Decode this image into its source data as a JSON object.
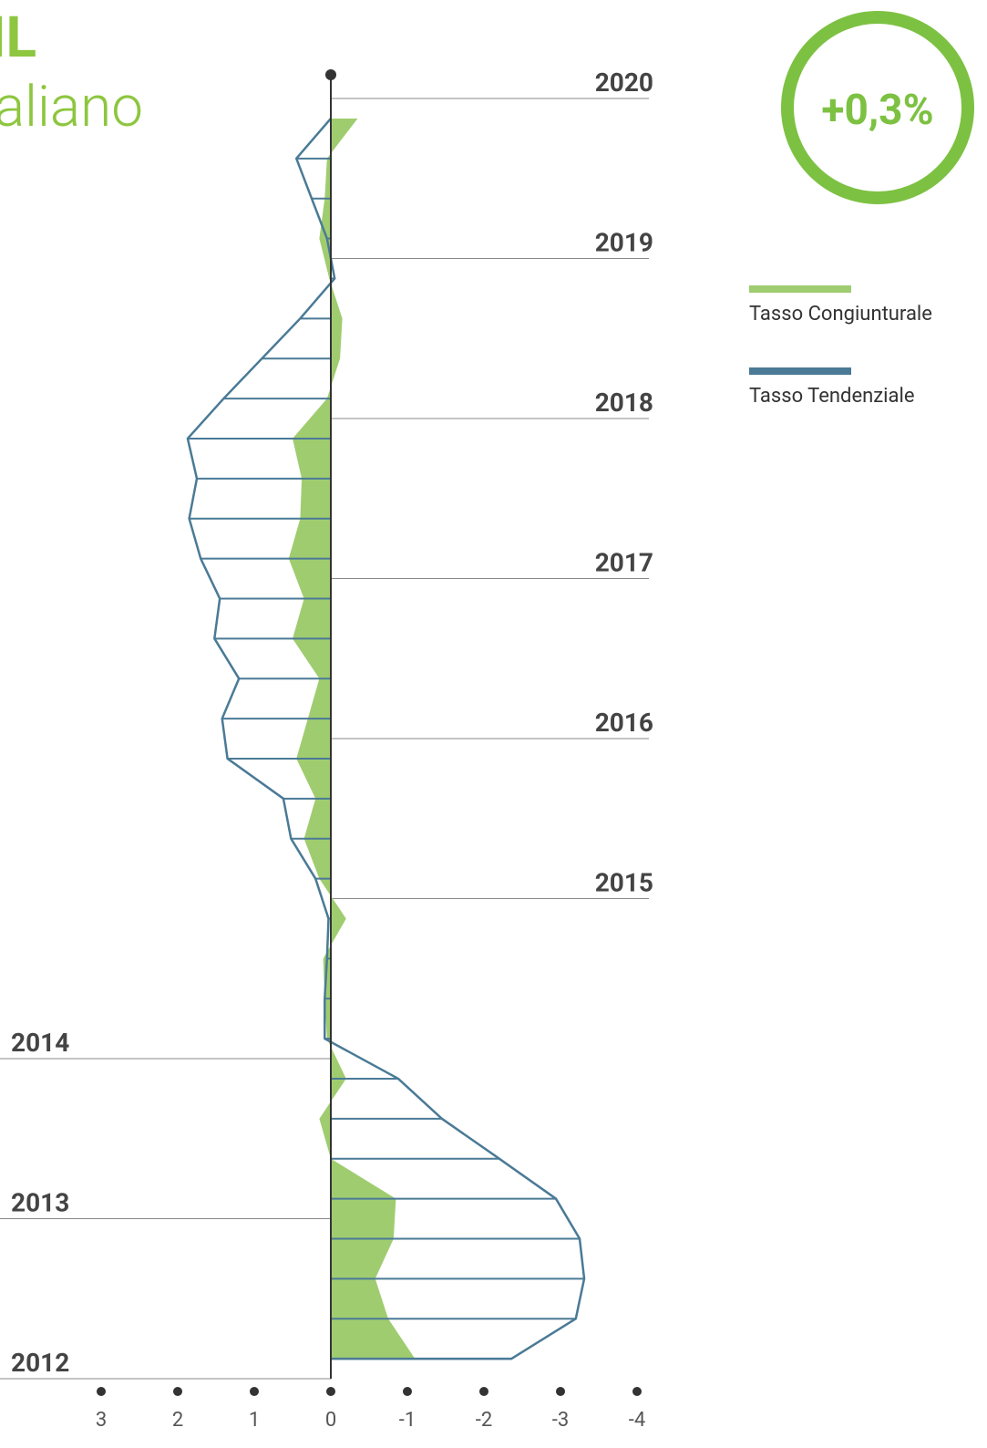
{
  "chart_data": {
    "type": "area",
    "title": "PIL",
    "subtitle": "italiano",
    "badge": "+0,3%",
    "x": [
      2012.125,
      2012.375,
      2012.625,
      2012.875,
      2013.125,
      2013.375,
      2013.625,
      2013.875,
      2014.125,
      2014.375,
      2014.625,
      2014.875,
      2015.125,
      2015.375,
      2015.625,
      2015.875,
      2016.125,
      2016.375,
      2016.625,
      2016.875,
      2017.125,
      2017.375,
      2017.625,
      2017.875,
      2018.125,
      2018.375,
      2018.625,
      2018.875,
      2019.125,
      2019.375,
      2019.625,
      2019.875
    ],
    "xlim": [
      2012,
      2020
    ],
    "xticks": [
      2012,
      2013,
      2014,
      2015,
      2016,
      2017,
      2018,
      2019,
      2020
    ],
    "ylim": [
      3,
      -4
    ],
    "yticks": [
      3,
      2,
      1,
      0,
      -1,
      -2,
      -3,
      -4
    ],
    "series": [
      {
        "name": "Tasso Congiunturale",
        "color": "#a0cc70",
        "values": [
          -1.1,
          -0.75,
          -0.58,
          -0.82,
          -0.85,
          0,
          0.15,
          -0.2,
          0.05,
          0.08,
          0.1,
          -0.2,
          0.15,
          0.35,
          0.2,
          0.45,
          0.3,
          0.15,
          0.5,
          0.35,
          0.55,
          0.4,
          0.38,
          0.5,
          0.05,
          -0.12,
          -0.15,
          0.02,
          0.15,
          0.08,
          0.05,
          -0.35
        ]
      },
      {
        "name": "Tasso Tendenziale",
        "color": "#4a7a96",
        "values": [
          -2.36,
          -3.2,
          -3.31,
          -3.25,
          -2.94,
          -2.2,
          -1.45,
          -0.88,
          0.08,
          0.08,
          0.05,
          0.03,
          0.2,
          0.52,
          0.62,
          1.35,
          1.42,
          1.2,
          1.52,
          1.45,
          1.7,
          1.85,
          1.75,
          1.87,
          1.4,
          0.9,
          0.4,
          -0.05,
          0.05,
          0.25,
          0.45,
          0
        ]
      }
    ]
  }
}
